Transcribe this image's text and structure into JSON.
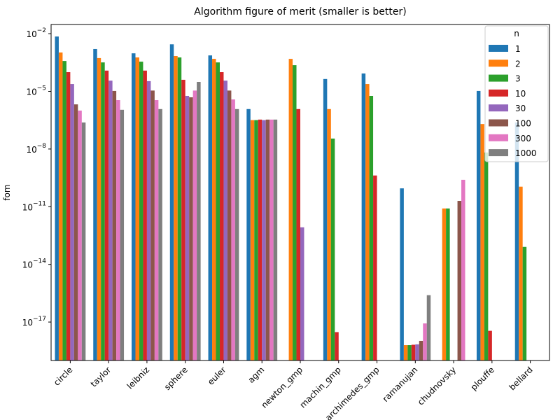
{
  "chart_data": {
    "type": "bar",
    "title": "Algorithm figure of merit (smaller is better)",
    "y_label": "fom",
    "log_scale": true,
    "legend_title": "n",
    "legend_position": "upper right",
    "categories": [
      "circle",
      "taylor",
      "leibniz",
      "sphere",
      "euler",
      "agm",
      "newton_gmp",
      "machin_gmp",
      "archimedes_gmp",
      "ramanujan",
      "chudnovsky",
      "plouffe",
      "bellard"
    ],
    "ylim": [
      1e-19,
      0.03
    ],
    "yticks": [
      {
        "value": 1e-17,
        "label": "10",
        "exponent": "−17"
      },
      {
        "value": 1e-14,
        "label": "10",
        "exponent": "−14"
      },
      {
        "value": 1e-11,
        "label": "10",
        "exponent": "−11"
      },
      {
        "value": 1e-08,
        "label": "10",
        "exponent": "−8"
      },
      {
        "value": 1e-05,
        "label": "10",
        "exponent": "−5"
      },
      {
        "value": 0.01,
        "label": "10",
        "exponent": "−2"
      }
    ],
    "series": [
      {
        "name": "1",
        "color": "#1f77b4",
        "values": [
          0.0071,
          0.0016,
          0.00095,
          0.0028,
          0.00074,
          1.2e-06,
          null,
          4.4e-05,
          8.5e-05,
          9e-11,
          null,
          1.05e-05,
          2.4e-07
        ]
      },
      {
        "name": "2",
        "color": "#ff7f0e",
        "values": [
          0.00105,
          0.00054,
          0.00058,
          0.00069,
          0.00049,
          3.2e-07,
          0.00049,
          1.2e-06,
          2.4e-05,
          6.3e-19,
          8.1e-12,
          2e-07,
          1.1e-10
        ]
      },
      {
        "name": "3",
        "color": "#2ca02c",
        "values": [
          0.00038,
          0.00032,
          0.00035,
          0.00058,
          0.00032,
          3.2e-07,
          0.00023,
          3.5e-08,
          5.8e-06,
          6.3e-19,
          8.1e-12,
          6.6e-09,
          8.1e-14
        ]
      },
      {
        "name": "10",
        "color": "#d62728",
        "values": [
          0.0001,
          0.00012,
          0.00012,
          4e-05,
          0.0001,
          3.4e-07,
          1.2e-06,
          3e-18,
          4.2e-10,
          6.6e-19,
          null,
          3.5e-18,
          null
        ]
      },
      {
        "name": "30",
        "color": "#9467bd",
        "values": [
          2.4e-05,
          3.6e-05,
          3.4e-05,
          5.8e-06,
          3.6e-05,
          3.2e-07,
          8.5e-13,
          null,
          null,
          6.9e-19,
          null,
          null,
          null
        ]
      },
      {
        "name": "100",
        "color": "#8c564b",
        "values": [
          2.1e-06,
          1.05e-05,
          1.1e-05,
          4.9e-06,
          1.1e-05,
          3.4e-07,
          null,
          null,
          null,
          1.05e-18,
          2e-11,
          null,
          null
        ]
      },
      {
        "name": "300",
        "color": "#e377c2",
        "values": [
          1e-06,
          3.5e-06,
          3.5e-06,
          1.1e-05,
          3.8e-06,
          3.4e-07,
          null,
          null,
          null,
          8.5e-18,
          2.5e-10,
          null,
          null
        ]
      },
      {
        "name": "1000",
        "color": "#7f7f7f",
        "values": [
          2.4e-07,
          1.1e-06,
          1.2e-06,
          3.1e-05,
          1.2e-06,
          3.4e-07,
          null,
          null,
          null,
          2.5e-16,
          null,
          null,
          null
        ]
      }
    ]
  }
}
